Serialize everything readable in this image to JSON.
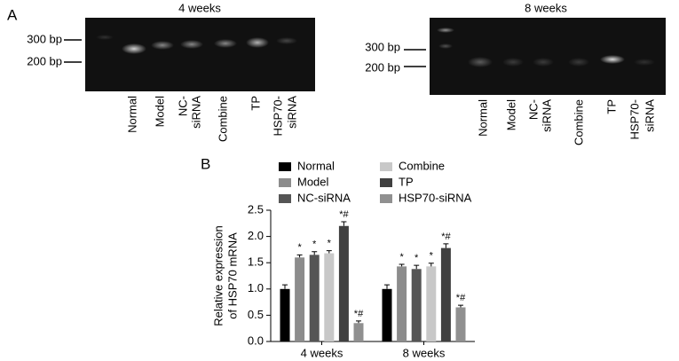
{
  "panel_labels": [
    "A",
    "B"
  ],
  "gels": [
    {
      "title": "4 weeks",
      "markers": [
        "300 bp",
        "200 bp"
      ],
      "lanes": [
        [
          "Normal"
        ],
        [
          "Model"
        ],
        [
          "NC-",
          "siRNA"
        ],
        [
          "Combine"
        ],
        [
          "TP"
        ],
        [
          "HSP70-",
          "siRNA"
        ]
      ]
    },
    {
      "title": "8 weeks",
      "markers": [
        "300 bp",
        "200 bp"
      ],
      "lanes": [
        [
          "Normal"
        ],
        [
          "Model"
        ],
        [
          "NC-",
          "siRNA"
        ],
        [
          "Combine"
        ],
        [
          "TP"
        ],
        [
          "HSP70-",
          "siRNA"
        ]
      ]
    }
  ],
  "chart_data": {
    "type": "bar",
    "ylabel": [
      "Relative expression",
      "of HSP70 mRNA"
    ],
    "categories": [
      "4 weeks",
      "8 weeks"
    ],
    "series": [
      {
        "name": "Normal",
        "color": "#000000",
        "values": [
          1.0,
          1.0
        ],
        "errors": [
          0.08,
          0.08
        ],
        "annotations": [
          null,
          null
        ]
      },
      {
        "name": "Model",
        "color": "#8c8c8c",
        "values": [
          1.6,
          1.43
        ],
        "errors": [
          0.05,
          0.04
        ],
        "annotations": [
          "*",
          "*"
        ]
      },
      {
        "name": "NC-siRNA",
        "color": "#555555",
        "values": [
          1.65,
          1.38
        ],
        "errors": [
          0.06,
          0.07
        ],
        "annotations": [
          "*",
          "*"
        ]
      },
      {
        "name": "Combine",
        "color": "#c8c8c8",
        "values": [
          1.68,
          1.43
        ],
        "errors": [
          0.05,
          0.06
        ],
        "annotations": [
          "*",
          "*"
        ]
      },
      {
        "name": "TP",
        "color": "#404040",
        "values": [
          2.2,
          1.78
        ],
        "errors": [
          0.08,
          0.08
        ],
        "annotations": [
          "*#",
          "*#"
        ]
      },
      {
        "name": "HSP70-siRNA",
        "color": "#909090",
        "values": [
          0.35,
          0.65
        ],
        "errors": [
          0.04,
          0.04
        ],
        "annotations": [
          "*#",
          "*#"
        ]
      }
    ],
    "ylim": [
      0,
      2.5
    ],
    "yticks": [
      {
        "value": 0,
        "label": "0.0"
      },
      0.5,
      {
        "value": 1,
        "label": "1.0"
      },
      1.5,
      {
        "value": 2,
        "label": "2.0"
      },
      2.5
    ]
  }
}
